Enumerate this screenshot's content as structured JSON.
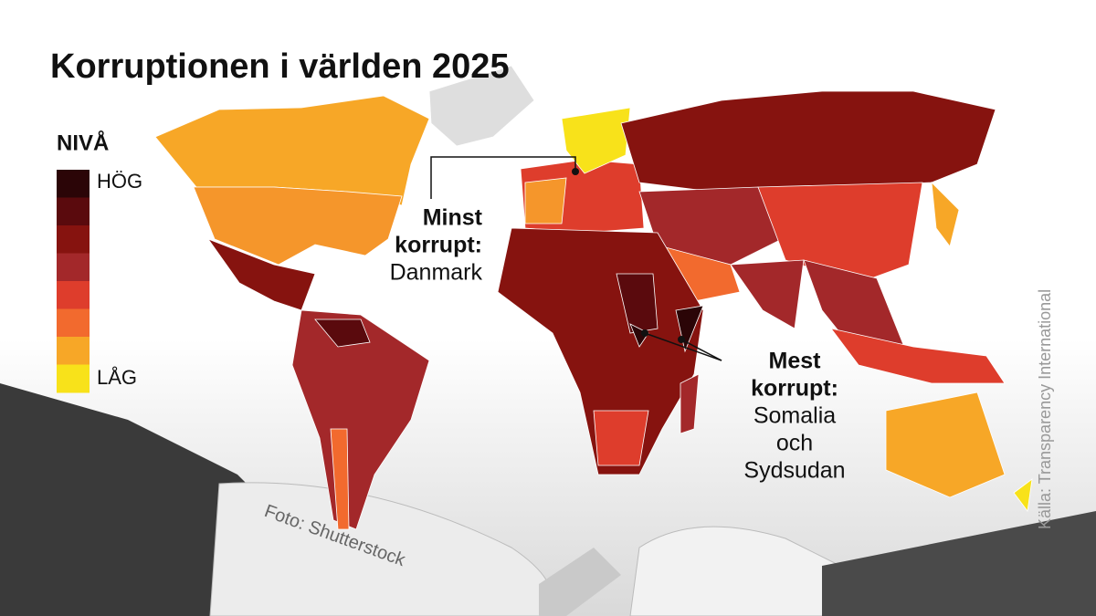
{
  "header": {
    "title": "Korruptionen i världen 2025"
  },
  "legend": {
    "title": "NIVÅ",
    "high": "HÖG",
    "low": "LÅG",
    "colors": [
      "#2b0507",
      "#5a0a0d",
      "#86130f",
      "#a3282a",
      "#de3d2c",
      "#f26a2e",
      "#f7a727",
      "#f8e21a"
    ]
  },
  "annotations": [
    {
      "lines": [
        "Minst",
        "korrupt:",
        "Danmark"
      ]
    },
    {
      "lines": [
        "Mest",
        "korrupt:",
        "Somalia",
        "och",
        "Sydsudan"
      ]
    }
  ],
  "source": "Källa: Transparency International",
  "photo_credit": "Foto: Shutterstock"
}
